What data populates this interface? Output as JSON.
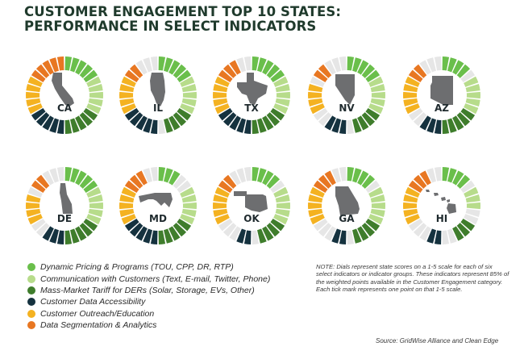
{
  "title_line1": "CUSTOMER ENGAGEMENT TOP 10 STATES:",
  "title_line2": "PERFORMANCE IN SELECT INDICATORS",
  "legend": [
    {
      "label": "Dynamic Pricing & Programs (TOU, CPP, DR, RTP)",
      "color": "#6abf4b"
    },
    {
      "label": "Communication with Customers (Text, E-mail, Twitter, Phone)",
      "color": "#b7dc8b"
    },
    {
      "label": "Mass-Market Tariff for DERs (Solar, Storage, EVs, Other)",
      "color": "#3f7d2c"
    },
    {
      "label": "Customer Data Accessibility",
      "color": "#15323f"
    },
    {
      "label": "Customer Outreach/Education",
      "color": "#f4b221"
    },
    {
      "label": "Data Segmentation & Analytics",
      "color": "#e87722"
    }
  ],
  "note": "NOTE: Dials represent state scores on a 1-5 scale for each of six select indicators or indicator groups. These indicators represent 85% of the weighted points available in the Customer Engagement category. Each tick mark represents one point on that 1-5 scale.",
  "source": "Source: GridWise Alliance and Clean Edge",
  "empty_color": "#e6e6e6",
  "chart_data": {
    "type": "radial-tick-dial",
    "scale": [
      1,
      5
    ],
    "ticks_per_indicator": 5,
    "indicators": [
      "Dynamic Pricing & Programs (TOU, CPP, DR, RTP)",
      "Communication with Customers (Text, E-mail, Twitter, Phone)",
      "Mass-Market Tariff for DERs (Solar, Storage, EVs, Other)",
      "Customer Data Accessibility",
      "Customer Outreach/Education",
      "Data Segmentation & Analytics"
    ],
    "states": [
      {
        "code": "CA",
        "scores": [
          5,
          5,
          5,
          5,
          5,
          5
        ]
      },
      {
        "code": "IL",
        "scores": [
          5,
          5,
          4,
          5,
          5,
          2
        ]
      },
      {
        "code": "TX",
        "scores": [
          5,
          5,
          5,
          5,
          5,
          3
        ]
      },
      {
        "code": "NV",
        "scores": [
          5,
          5,
          4,
          3,
          4,
          2
        ]
      },
      {
        "code": "AZ",
        "scores": [
          4,
          5,
          5,
          3,
          5,
          2
        ]
      },
      {
        "code": "DE",
        "scores": [
          5,
          5,
          5,
          3,
          4,
          2
        ]
      },
      {
        "code": "MD",
        "scores": [
          3,
          5,
          5,
          5,
          5,
          3
        ]
      },
      {
        "code": "OK",
        "scores": [
          4,
          5,
          4,
          2,
          5,
          2
        ]
      },
      {
        "code": "GA",
        "scores": [
          4,
          5,
          4,
          2,
          5,
          3
        ]
      },
      {
        "code": "HI",
        "scores": [
          4,
          3,
          3,
          2,
          5,
          3
        ]
      }
    ]
  }
}
